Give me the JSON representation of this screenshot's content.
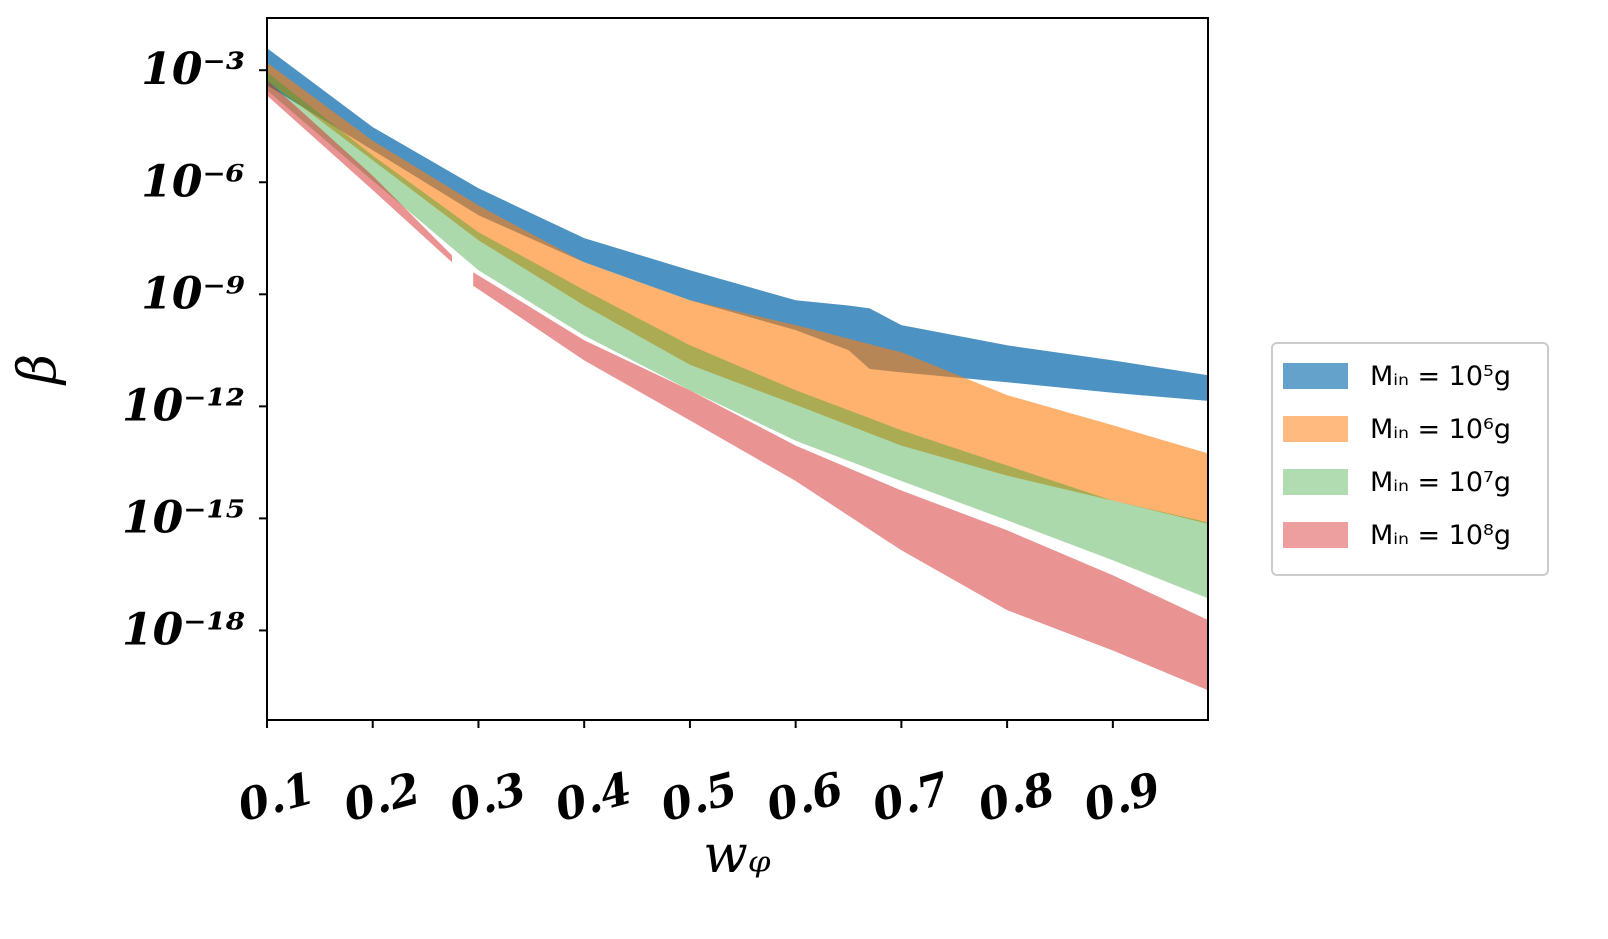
{
  "chart_data": {
    "type": "band",
    "xlabel": "wᵩ",
    "ylabel": "β",
    "xlim": [
      0.1,
      0.99
    ],
    "xticks": [
      0.1,
      0.2,
      0.3,
      0.4,
      0.5,
      0.6,
      0.7,
      0.8,
      0.9
    ],
    "ylim": [
      4e-21,
      0.025
    ],
    "yscale": "log",
    "yticks": [
      {
        "value": 0.001,
        "label": "10⁻³"
      },
      {
        "value": 1e-06,
        "label": "10⁻⁶"
      },
      {
        "value": 1e-09,
        "label": "10⁻⁹"
      },
      {
        "value": 1e-12,
        "label": "10⁻¹²"
      },
      {
        "value": 1e-15,
        "label": "10⁻¹⁵"
      },
      {
        "value": 1e-18,
        "label": "10⁻¹⁸"
      }
    ],
    "grid": false,
    "legend": "right",
    "series": [
      {
        "name": "Mᵢₙ = 10⁵g",
        "color": "#1f77b4",
        "alpha": 0.8,
        "x": [
          0.1,
          0.2,
          0.3,
          0.4,
          0.5,
          0.6,
          0.65,
          0.67,
          0.7,
          0.8,
          0.9,
          0.99
        ],
        "upper": [
          0.0039,
          3e-05,
          6.9e-07,
          3.2e-08,
          4.4e-09,
          6.9e-10,
          5e-10,
          4.2e-10,
          1.5e-10,
          4.3e-11,
          1.7e-11,
          6.8e-12
        ],
        "lower": [
          0.0004,
          7.2e-06,
          1.3e-07,
          7.2e-09,
          6.9e-10,
          1.1e-10,
          3.2e-11,
          1e-11,
          8.1e-12,
          4.4e-12,
          2.3e-12,
          1.4e-12
        ]
      },
      {
        "name": "Mᵢₙ = 10⁶g",
        "color": "#ff7f0e",
        "alpha": 0.6,
        "x": [
          0.1,
          0.2,
          0.3,
          0.4,
          0.5,
          0.6,
          0.7,
          0.8,
          0.9,
          0.99
        ],
        "upper": [
          0.0016,
          1.3e-05,
          2.4e-07,
          7.2e-09,
          6.9e-10,
          1.5e-10,
          2.8e-11,
          2e-12,
          3.1e-13,
          5.5e-14
        ],
        "lower": [
          0.00054,
          3.9e-06,
          2.8e-08,
          5e-10,
          1.3e-11,
          1.1e-12,
          8.9e-14,
          1.4e-14,
          3e-15,
          7.2e-16
        ]
      },
      {
        "name": "Mᵢₙ = 10⁷g",
        "color": "#2ca02c",
        "alpha": 0.4,
        "x": [
          0.1,
          0.2,
          0.3,
          0.4,
          0.5,
          0.6,
          0.7,
          0.8,
          0.9,
          0.99
        ],
        "upper": [
          0.00089,
          5.2e-06,
          4.6e-08,
          1.3e-09,
          4.3e-11,
          2.7e-12,
          2.3e-13,
          2.6e-14,
          3e-15,
          7.8e-16
        ],
        "lower": [
          0.00029,
          1.1e-06,
          4.4e-09,
          7.9e-11,
          2.7e-12,
          1.2e-13,
          1e-14,
          8.9e-16,
          7.6e-17,
          7.2e-18
        ]
      },
      {
        "name": "Mᵢₙ = 10⁸g",
        "color": "#d62728",
        "alpha": 0.5,
        "x": [
          0.1,
          0.2,
          0.275,
          0.285,
          0.295,
          0.4,
          0.5,
          0.6,
          0.7,
          0.8,
          0.9,
          0.99
        ],
        "upper": [
          0.00054,
          1.5e-06,
          1.1e-08,
          null,
          3.9e-09,
          5.9e-11,
          2.7e-12,
          8.9e-14,
          5.6e-15,
          4.8e-16,
          3e-17,
          1.9e-18
        ],
        "lower": [
          0.00021,
          6.2e-07,
          7.2e-09,
          null,
          1.7e-09,
          1.7e-11,
          4.2e-13,
          1e-14,
          1.4e-16,
          3.5e-18,
          2.9e-19,
          2.5e-20
        ]
      }
    ]
  }
}
